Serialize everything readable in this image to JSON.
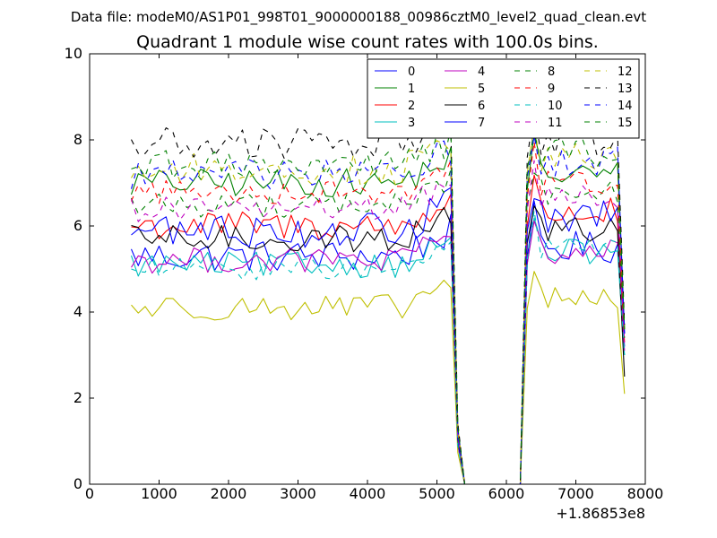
{
  "figure": {
    "suptitle": "Data file: modeM0/AS1P01_998T01_9000000188_00986cztM0_level2_quad_clean.evt",
    "title": "Quadrant 1 module wise count rates with 100.0s bins.",
    "x_offset_label": "+1.86853e8"
  },
  "chart_data": {
    "type": "line",
    "title": "Quadrant 1 module wise count rates with 100.0s bins.",
    "xlabel": "",
    "ylabel": "",
    "xlim": [
      0,
      8000
    ],
    "ylim": [
      0,
      10
    ],
    "x_offset": "+1.86853e8",
    "xticks": [
      "0",
      "1000",
      "2000",
      "3000",
      "4000",
      "5000",
      "6000",
      "7000",
      "8000"
    ],
    "yticks": [
      "0",
      "2",
      "4",
      "6",
      "8",
      "10"
    ],
    "grid": false,
    "legend": {
      "placement": "top-right",
      "columns": 4
    },
    "x": {
      "start": 600,
      "step": 100,
      "segment1_end": 5200,
      "drop_points": [
        5300,
        5400
      ],
      "gap_start": 5400,
      "gap_end": 6200,
      "rise_points": [
        6300
      ],
      "segment2_start": 6400,
      "segment2_end": 7600,
      "last": 7700
    },
    "series": [
      {
        "name": "0",
        "color": "#0000ff",
        "dashed": false,
        "level1": 5.3,
        "noise": 0.38,
        "level2": 5.5,
        "last": 3.2
      },
      {
        "name": "1",
        "color": "#008000",
        "dashed": false,
        "level1": 7.0,
        "noise": 0.33,
        "level2": 7.2,
        "last": 3.6
      },
      {
        "name": "2",
        "color": "#ff0000",
        "dashed": false,
        "level1": 6.0,
        "noise": 0.35,
        "level2": 6.3,
        "last": 3.3
      },
      {
        "name": "3",
        "color": "#00bfbf",
        "dashed": false,
        "level1": 5.1,
        "noise": 0.3,
        "level2": 5.4,
        "last": 3.0
      },
      {
        "name": "4",
        "color": "#bf00bf",
        "dashed": false,
        "level1": 5.2,
        "noise": 0.3,
        "level2": 5.4,
        "last": 3.1
      },
      {
        "name": "5",
        "color": "#bfbf00",
        "dashed": false,
        "level1": 4.1,
        "noise": 0.3,
        "level2": 4.3,
        "last": 2.1
      },
      {
        "name": "6",
        "color": "#000000",
        "dashed": false,
        "level1": 5.7,
        "noise": 0.32,
        "level2": 5.9,
        "last": 2.5
      },
      {
        "name": "7",
        "color": "#0000ff",
        "dashed": false,
        "level1": 5.9,
        "noise": 0.4,
        "level2": 6.2,
        "last": 3.5
      },
      {
        "name": "8",
        "color": "#008000",
        "dashed": true,
        "level1": 6.5,
        "noise": 0.3,
        "level2": 6.8,
        "last": 3.4
      },
      {
        "name": "9",
        "color": "#ff0000",
        "dashed": true,
        "level1": 6.8,
        "noise": 0.3,
        "level2": 7.0,
        "last": 3.5
      },
      {
        "name": "10",
        "color": "#00bfbf",
        "dashed": true,
        "level1": 5.0,
        "noise": 0.25,
        "level2": 5.5,
        "last": 3.0
      },
      {
        "name": "11",
        "color": "#bf00bf",
        "dashed": true,
        "level1": 6.4,
        "noise": 0.3,
        "level2": 6.7,
        "last": 3.3
      },
      {
        "name": "12",
        "color": "#bfbf00",
        "dashed": true,
        "level1": 7.3,
        "noise": 0.38,
        "level2": 7.6,
        "last": 3.6
      },
      {
        "name": "13",
        "color": "#000000",
        "dashed": true,
        "level1": 7.9,
        "noise": 0.4,
        "level2": 8.0,
        "last": 3.7
      },
      {
        "name": "14",
        "color": "#0000ff",
        "dashed": true,
        "level1": 7.2,
        "noise": 0.35,
        "level2": 7.5,
        "last": 3.5
      },
      {
        "name": "15",
        "color": "#008000",
        "dashed": true,
        "level1": 7.4,
        "noise": 0.35,
        "level2": 7.7,
        "last": 3.6
      }
    ]
  }
}
